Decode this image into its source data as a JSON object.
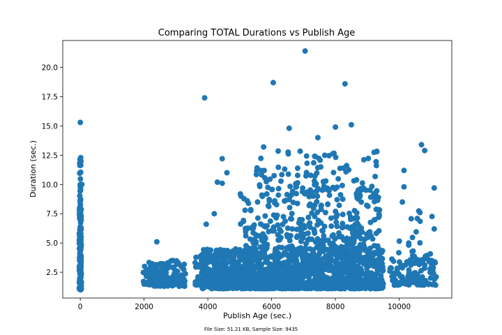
{
  "chart_data": {
    "type": "scatter",
    "title": "Comparing TOTAL Durations vs Publish Age",
    "xlabel": "Publish Age (sec.)",
    "ylabel": "Duration (sec.)",
    "xlim": [
      -550,
      11650
    ],
    "ylim": [
      0.3,
      22.3
    ],
    "xticks": [
      0,
      2000,
      4000,
      6000,
      8000,
      10000
    ],
    "xtick_labels": [
      "0",
      "2000",
      "4000",
      "6000",
      "8000",
      "10000"
    ],
    "yticks": [
      2.5,
      5.0,
      7.5,
      10.0,
      12.5,
      15.0,
      17.5,
      20.0
    ],
    "ytick_labels": [
      "2.5",
      "5.0",
      "7.5",
      "10.0",
      "12.5",
      "15.0",
      "17.5",
      "20.0"
    ],
    "grid": false,
    "legend": "none",
    "marker_color": "#1f77b4",
    "footer": "File Size: 51.21 KB, Sample Size: 9435",
    "outliers": [
      {
        "x": 3900,
        "y": 17.4
      },
      {
        "x": 6050,
        "y": 18.7
      },
      {
        "x": 7050,
        "y": 21.4
      },
      {
        "x": 8300,
        "y": 18.6
      },
      {
        "x": 0,
        "y": 15.3
      },
      {
        "x": 6550,
        "y": 14.8
      },
      {
        "x": 7450,
        "y": 14.0
      },
      {
        "x": 8000,
        "y": 14.9
      },
      {
        "x": 8500,
        "y": 15.1
      },
      {
        "x": 10700,
        "y": 13.4
      },
      {
        "x": 10800,
        "y": 12.9
      },
      {
        "x": 9300,
        "y": 12.8
      },
      {
        "x": 11100,
        "y": 9.7
      },
      {
        "x": 10150,
        "y": 11.2
      },
      {
        "x": 10150,
        "y": 9.8
      },
      {
        "x": 4450,
        "y": 12.2
      },
      {
        "x": 4600,
        "y": 11.0
      },
      {
        "x": 2400,
        "y": 5.1
      },
      {
        "x": 5750,
        "y": 13.2
      },
      {
        "x": 4300,
        "y": 10.2
      },
      {
        "x": 4450,
        "y": 10.1
      },
      {
        "x": 3950,
        "y": 6.6
      },
      {
        "x": 4200,
        "y": 7.5
      },
      {
        "x": 0,
        "y": 10.0
      },
      {
        "x": 50,
        "y": 10.0
      },
      {
        "x": 11100,
        "y": 6.2
      },
      {
        "x": 10100,
        "y": 8.5
      },
      {
        "x": 10650,
        "y": 7.6
      }
    ],
    "clusters": [
      {
        "x": [
          -30,
          30
        ],
        "y": [
          1.0,
          7.5
        ],
        "n": 140
      },
      {
        "x": [
          -30,
          30
        ],
        "y": [
          7.5,
          12.3
        ],
        "n": 35
      },
      {
        "x": [
          1950,
          2600
        ],
        "y": [
          1.3,
          3.4
        ],
        "n": 70
      },
      {
        "x": [
          2600,
          3300
        ],
        "y": [
          1.3,
          3.6
        ],
        "n": 70
      },
      {
        "x": [
          3600,
          4100
        ],
        "y": [
          1.4,
          4.0
        ],
        "n": 50
      },
      {
        "x": [
          3800,
          9500
        ],
        "y": [
          1.1,
          4.5
        ],
        "n": 1400
      },
      {
        "x": [
          5000,
          9400
        ],
        "y": [
          4.5,
          9.5
        ],
        "n": 320
      },
      {
        "x": [
          5500,
          9300
        ],
        "y": [
          9.5,
          13.0
        ],
        "n": 95
      },
      {
        "x": [
          9700,
          11200
        ],
        "y": [
          1.4,
          3.8
        ],
        "n": 110
      },
      {
        "x": [
          9900,
          11100
        ],
        "y": [
          3.8,
          8.0
        ],
        "n": 20
      }
    ]
  }
}
